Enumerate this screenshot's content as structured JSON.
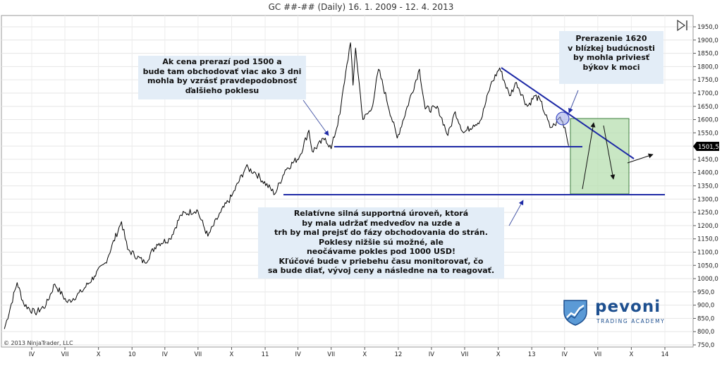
{
  "chart_data": {
    "type": "line",
    "title": "GC ##-## (Daily)  16. 1. 2009 - 12. 4. 2013",
    "xlabel": "",
    "ylabel": "",
    "ylim": [
      750,
      1950
    ],
    "y_ticks": [
      "1950,0",
      "1900,0",
      "1850,0",
      "1800,0",
      "1750,0",
      "1700,0",
      "1650,0",
      "1600,0",
      "1550,0",
      "1500,0",
      "1450,0",
      "1400,0",
      "1350,0",
      "1300,0",
      "1250,0",
      "1200,0",
      "1150,0",
      "1100,0",
      "1050,0",
      "1000,0",
      "950,0",
      "900,0",
      "850,0",
      "800,0",
      "750,0"
    ],
    "x_ticks": [
      {
        "label": "IV",
        "date": "2009-04-01"
      },
      {
        "label": "VII",
        "date": "2009-07-01"
      },
      {
        "label": "X",
        "date": "2009-10-01"
      },
      {
        "label": "10",
        "date": "2010-01-01"
      },
      {
        "label": "IV",
        "date": "2010-04-01"
      },
      {
        "label": "VII",
        "date": "2010-07-01"
      },
      {
        "label": "X",
        "date": "2010-10-01"
      },
      {
        "label": "11",
        "date": "2011-01-01"
      },
      {
        "label": "IV",
        "date": "2011-04-01"
      },
      {
        "label": "VII",
        "date": "2011-07-01"
      },
      {
        "label": "X",
        "date": "2011-10-01"
      },
      {
        "label": "12",
        "date": "2012-01-01"
      },
      {
        "label": "IV",
        "date": "2012-04-01"
      },
      {
        "label": "VII",
        "date": "2012-07-01"
      },
      {
        "label": "X",
        "date": "2012-10-01"
      },
      {
        "label": "13",
        "date": "2013-01-01"
      },
      {
        "label": "IV",
        "date": "2013-04-01"
      },
      {
        "label": "VII",
        "date": "2013-07-01"
      },
      {
        "label": "X",
        "date": "2013-10-01"
      },
      {
        "label": "14",
        "date": "2014-01-01"
      }
    ],
    "last_price_label": "1501,5",
    "series": [
      {
        "values": [
          {
            "x": "2009-01-16",
            "y": 810
          },
          {
            "x": "2009-02-20",
            "y": 985
          },
          {
            "x": "2009-03-10",
            "y": 905
          },
          {
            "x": "2009-04-10",
            "y": 870
          },
          {
            "x": "2009-05-10",
            "y": 900
          },
          {
            "x": "2009-06-03",
            "y": 980
          },
          {
            "x": "2009-07-08",
            "y": 910
          },
          {
            "x": "2009-08-15",
            "y": 950
          },
          {
            "x": "2009-09-20",
            "y": 1010
          },
          {
            "x": "2009-10-20",
            "y": 1060
          },
          {
            "x": "2009-12-03",
            "y": 1215
          },
          {
            "x": "2009-12-20",
            "y": 1110
          },
          {
            "x": "2010-02-05",
            "y": 1060
          },
          {
            "x": "2010-03-10",
            "y": 1130
          },
          {
            "x": "2010-04-15",
            "y": 1150
          },
          {
            "x": "2010-05-15",
            "y": 1240
          },
          {
            "x": "2010-06-28",
            "y": 1260
          },
          {
            "x": "2010-07-28",
            "y": 1160
          },
          {
            "x": "2010-09-01",
            "y": 1250
          },
          {
            "x": "2010-10-01",
            "y": 1310
          },
          {
            "x": "2010-11-09",
            "y": 1420
          },
          {
            "x": "2010-12-05",
            "y": 1400
          },
          {
            "x": "2011-01-28",
            "y": 1320
          },
          {
            "x": "2011-02-25",
            "y": 1410
          },
          {
            "x": "2011-04-05",
            "y": 1460
          },
          {
            "x": "2011-05-01",
            "y": 1560
          },
          {
            "x": "2011-05-10",
            "y": 1480
          },
          {
            "x": "2011-06-15",
            "y": 1530
          },
          {
            "x": "2011-07-01",
            "y": 1490
          },
          {
            "x": "2011-07-25",
            "y": 1620
          },
          {
            "x": "2011-08-10",
            "y": 1780
          },
          {
            "x": "2011-08-23",
            "y": 1890
          },
          {
            "x": "2011-08-30",
            "y": 1730
          },
          {
            "x": "2011-09-06",
            "y": 1870
          },
          {
            "x": "2011-09-26",
            "y": 1600
          },
          {
            "x": "2011-10-20",
            "y": 1640
          },
          {
            "x": "2011-11-08",
            "y": 1790
          },
          {
            "x": "2011-12-29",
            "y": 1530
          },
          {
            "x": "2012-02-28",
            "y": 1790
          },
          {
            "x": "2012-03-15",
            "y": 1640
          },
          {
            "x": "2012-04-20",
            "y": 1640
          },
          {
            "x": "2012-05-16",
            "y": 1540
          },
          {
            "x": "2012-06-05",
            "y": 1630
          },
          {
            "x": "2012-06-28",
            "y": 1550
          },
          {
            "x": "2012-07-25",
            "y": 1580
          },
          {
            "x": "2012-08-15",
            "y": 1600
          },
          {
            "x": "2012-09-10",
            "y": 1730
          },
          {
            "x": "2012-10-05",
            "y": 1795
          },
          {
            "x": "2012-11-01",
            "y": 1690
          },
          {
            "x": "2012-11-20",
            "y": 1740
          },
          {
            "x": "2012-12-20",
            "y": 1650
          },
          {
            "x": "2013-01-10",
            "y": 1690
          },
          {
            "x": "2013-01-25",
            "y": 1670
          },
          {
            "x": "2013-02-20",
            "y": 1570
          },
          {
            "x": "2013-03-05",
            "y": 1580
          },
          {
            "x": "2013-03-20",
            "y": 1610
          },
          {
            "x": "2013-04-02",
            "y": 1570
          },
          {
            "x": "2013-04-12",
            "y": 1501.5
          }
        ]
      }
    ],
    "annotations": [
      {
        "name": "note-1500",
        "text": "Ak cena prerazí pod 1500 a\nbude tam obchodovať viac ako 3 dni\nmohla by vzrásť pravdepodobnosť\nďalšieho poklesu"
      },
      {
        "name": "note-1620",
        "text": "Prerazenie 1620\nv blízkej budúcnosti\nby mohla priviesť\nbýkov k moci"
      },
      {
        "name": "note-support",
        "text": "Relatívne silná supportná úroveň, ktorá\nby mala udržať medveďov na uzde a\ntrh by mal prejsť do fázy obchodovania do strán.\nPoklesy nižšie sú možné, ale\nneočávame pokles pod 1000 USD!\nKľúčové bude v priebehu času monitorovať, čo\nsa bude diať, vývoj ceny a následne na to reagovať."
      }
    ],
    "copyright": "© 2013 NinjaTrader, LLC"
  },
  "logo": {
    "name": "pevoni",
    "subtitle": "TRADING ACADEMY",
    "icon": "shield-chart-icon"
  },
  "toolbar": {
    "icon": "scroll-to-end-icon"
  },
  "colors": {
    "price": "#000000",
    "level": "#1e2aa6",
    "trend": "#1e2aa6",
    "box": "#b7dfb0",
    "box_border": "#3f7f3f",
    "note_bg": "#e3edf7",
    "logo": "#1d4f8f",
    "price_tag": "#000000"
  },
  "grid": true,
  "legend": "none"
}
